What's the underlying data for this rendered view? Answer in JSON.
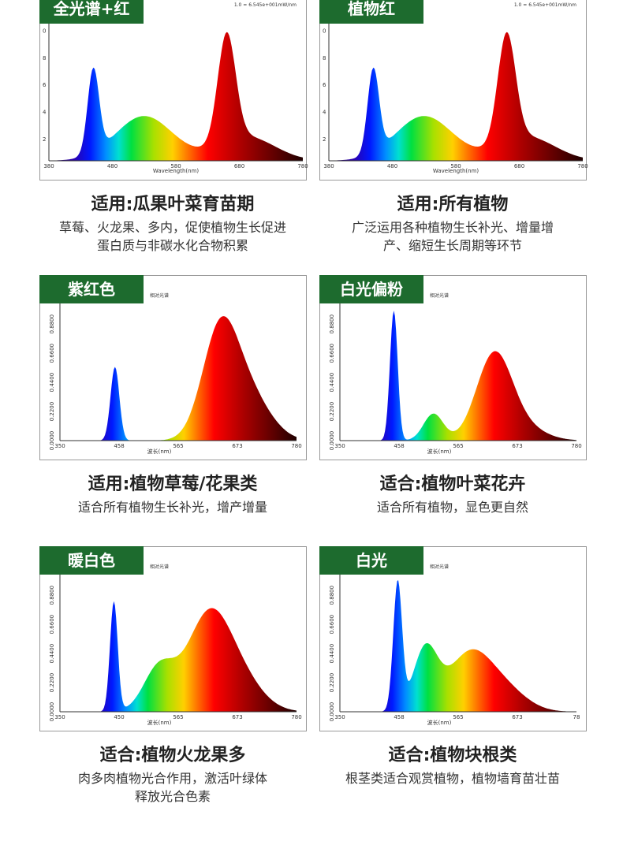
{
  "cards": [
    {
      "badge": "全光谱+红",
      "note": "1.0 = 6.545e+001mW/nm",
      "y_ticks": [
        "2",
        "4",
        "6",
        "8",
        "0"
      ],
      "x_ticks": [
        "380",
        "480",
        "580",
        "680",
        "780"
      ],
      "x_axis_label": "Wavelength(nm)",
      "title": "适用:瓜果叶菜育苗期",
      "description": [
        "草莓、火龙果、多内，促使植物生长促进",
        "蛋白质与非碳水化合物积累"
      ]
    },
    {
      "badge": "植物红",
      "note": "1.0 = 6.545e+001mW/nm",
      "y_ticks": [
        "2",
        "4",
        "6",
        "8",
        "0"
      ],
      "x_ticks": [
        "380",
        "480",
        "580",
        "680",
        "780"
      ],
      "x_axis_label": "Wavelength(nm)",
      "title": "适用:所有植物",
      "description": [
        "广泛运用各种植物生长补光、增量增",
        "产、缩短生长周期等环节"
      ]
    },
    {
      "badge": "紫红色",
      "note": "相对光谱",
      "y_ticks": [
        "0.0000",
        "0.2200",
        "0.4400",
        "0.6600",
        "0.8800"
      ],
      "x_ticks": [
        "350",
        "458",
        "565",
        "673",
        "780"
      ],
      "x_axis_label": "波长(nm)",
      "title": "适用:植物草莓/花果类",
      "description": [
        "适合所有植物生长补光，增产增量"
      ]
    },
    {
      "badge": "白光偏粉",
      "note": "相对光谱",
      "y_ticks": [
        "0.0000",
        "0.2200",
        "0.4400",
        "0.6600",
        "0.8800"
      ],
      "x_ticks": [
        "350",
        "458",
        "565",
        "673",
        "780"
      ],
      "x_axis_label": "波长(nm)",
      "title": "适合:植物叶菜花卉",
      "description": [
        "适合所有植物，显色更自然"
      ]
    },
    {
      "badge": "暖白色",
      "note": "相对光谱",
      "y_ticks": [
        "0.0000",
        "0.2200",
        "0.4400",
        "0.6600",
        "0.8800"
      ],
      "x_ticks": [
        "350",
        "450",
        "565",
        "673",
        "780"
      ],
      "x_axis_label": "波长(nm)",
      "title": "适合:植物火龙果多",
      "description": [
        "肉多肉植物光合作用，激活叶绿体",
        "释放光合色素"
      ]
    },
    {
      "badge": "白光",
      "note": "相对光谱",
      "y_ticks": [
        "0.0000",
        "0.2200",
        "0.4400",
        "0.6600",
        "0.8800"
      ],
      "x_ticks": [
        "350",
        "458",
        "565",
        "673",
        "78"
      ],
      "x_axis_label": "波长(nm)",
      "title": "适合:植物块根类",
      "description": [
        "根茎类适合观赏植物，植物墙育苗壮苗"
      ]
    }
  ]
}
